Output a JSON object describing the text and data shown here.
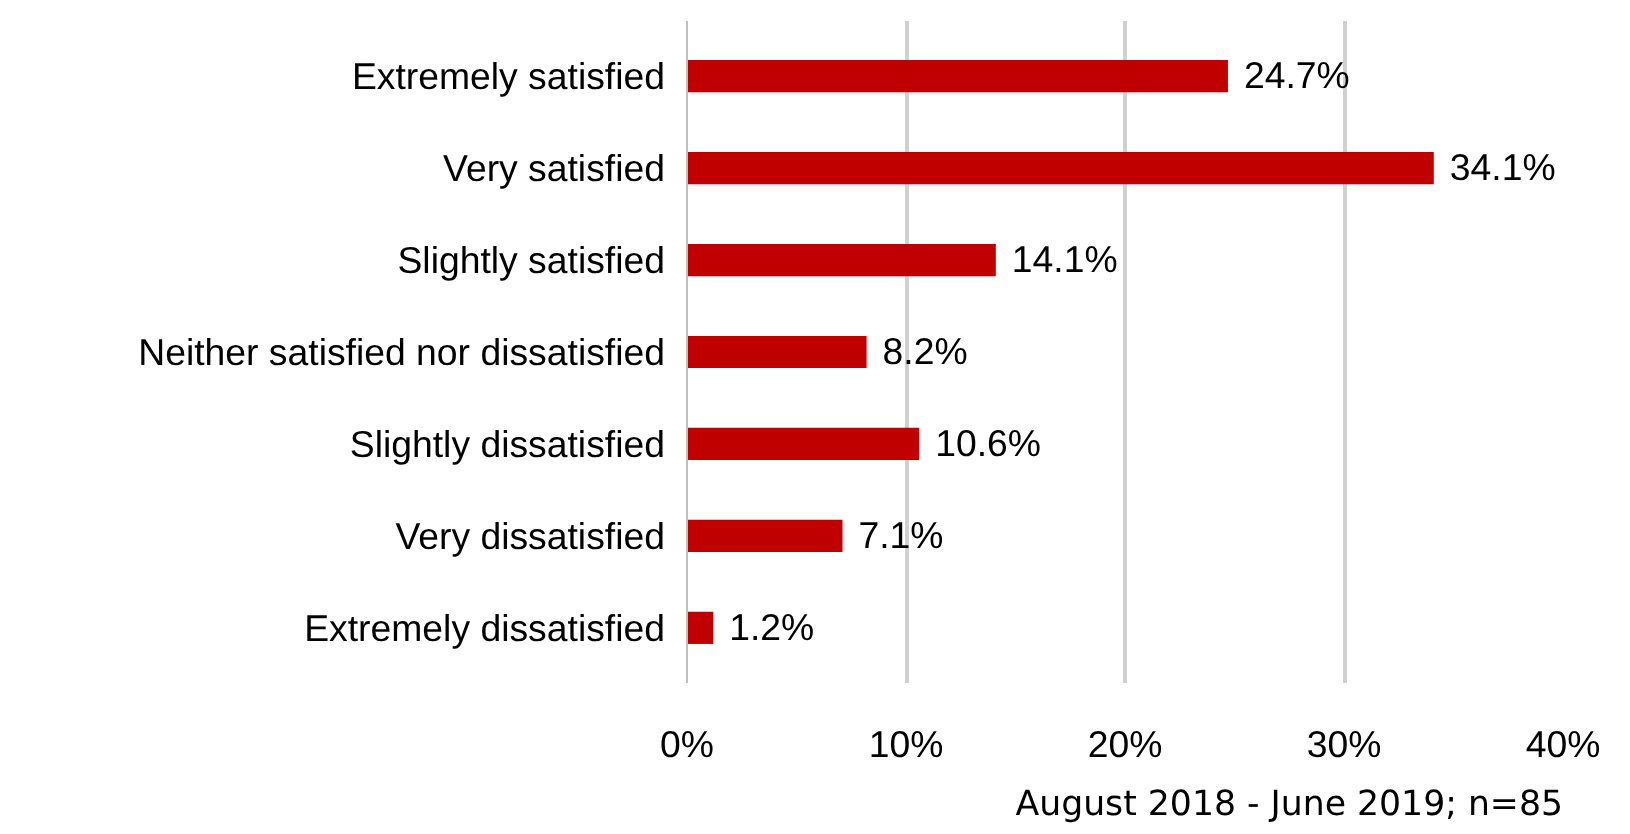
{
  "chart_data": {
    "type": "bar",
    "orientation": "horizontal",
    "categories": [
      "Extremely satisfied",
      "Very satisfied",
      "Slightly satisfied",
      "Neither satisfied nor dissatisfied",
      "Slightly dissatisfied",
      "Very dissatisfied",
      "Extremely dissatisfied"
    ],
    "values": [
      24.7,
      34.1,
      14.1,
      8.2,
      10.6,
      7.1,
      1.2
    ],
    "value_labels": [
      "24.7%",
      "34.1%",
      "14.1%",
      "8.2%",
      "10.6%",
      "7.1%",
      "1.2%"
    ],
    "color": "#c00000",
    "xlim": [
      0,
      40
    ],
    "xticks": [
      {
        "value": 0,
        "label": "0%"
      },
      {
        "value": 10,
        "label": "10%"
      },
      {
        "value": 20,
        "label": "20%"
      },
      {
        "value": 30,
        "label": "30%"
      },
      {
        "value": 40,
        "label": "40%"
      }
    ],
    "grid": "x",
    "annotations": [
      "August 2018 - June 2019; n=85"
    ]
  }
}
